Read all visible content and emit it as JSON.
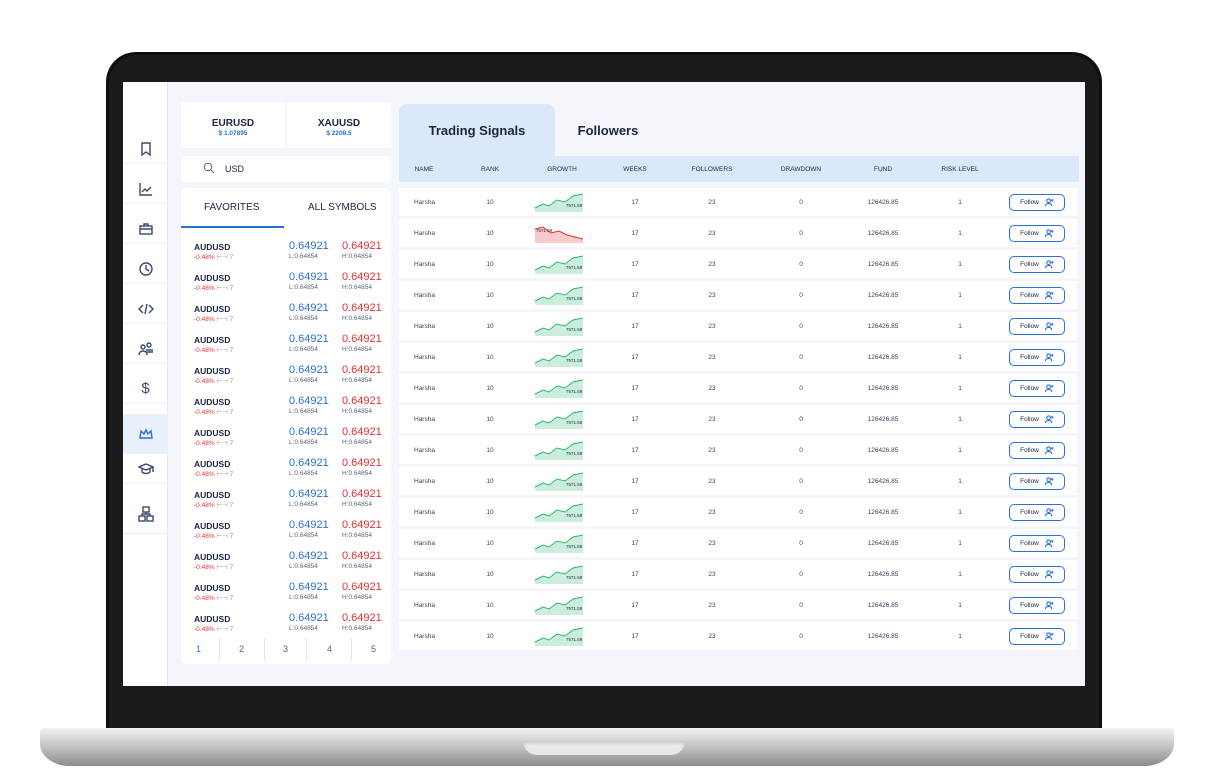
{
  "quotes": [
    {
      "symbol": "EURUSD",
      "value": "$ 1.07895"
    },
    {
      "symbol": "XAUUSD",
      "value": "$ 2208.5"
    }
  ],
  "search": {
    "value": "USD"
  },
  "symbol_tabs": [
    "FAVORITES",
    "ALL SYMBOLS"
  ],
  "symbols": [
    {
      "name": "AUDUSD",
      "change": "-0.48%",
      "spread": "7",
      "bid": "0.64921",
      "ask": "0.64921",
      "low": "L:0.64854",
      "high": "H:0.64854"
    },
    {
      "name": "AUDUSD",
      "change": "-0.48%",
      "spread": "7",
      "bid": "0.64921",
      "ask": "0.64921",
      "low": "L:0.64854",
      "high": "H:0.64854"
    },
    {
      "name": "AUDUSD",
      "change": "-0.48%",
      "spread": "7",
      "bid": "0.64921",
      "ask": "0.64921",
      "low": "L:0.64854",
      "high": "H:0.64854"
    },
    {
      "name": "AUDUSD",
      "change": "-0.48%",
      "spread": "7",
      "bid": "0.64921",
      "ask": "0.64921",
      "low": "L:0.64854",
      "high": "H:0.64854"
    },
    {
      "name": "AUDUSD",
      "change": "-0.48%",
      "spread": "7",
      "bid": "0.64921",
      "ask": "0.64921",
      "low": "L:0.64854",
      "high": "H:0.64854"
    },
    {
      "name": "AUDUSD",
      "change": "-0.48%",
      "spread": "7",
      "bid": "0.64921",
      "ask": "0.64921",
      "low": "L:0.64854",
      "high": "H:0.64854"
    },
    {
      "name": "AUDUSD",
      "change": "-0.48%",
      "spread": "7",
      "bid": "0.64921",
      "ask": "0.64921",
      "low": "L:0.64854",
      "high": "H:0.64854"
    },
    {
      "name": "AUDUSD",
      "change": "-0.48%",
      "spread": "7",
      "bid": "0.64921",
      "ask": "0.64921",
      "low": "L:0.64854",
      "high": "H:0.64854"
    },
    {
      "name": "AUDUSD",
      "change": "-0.48%",
      "spread": "7",
      "bid": "0.64921",
      "ask": "0.64921",
      "low": "L:0.64854",
      "high": "H:0.64854"
    },
    {
      "name": "AUDUSD",
      "change": "-0.48%",
      "spread": "7",
      "bid": "0.64921",
      "ask": "0.64921",
      "low": "L:0.64854",
      "high": "H:0.64854"
    },
    {
      "name": "AUDUSD",
      "change": "-0.48%",
      "spread": "7",
      "bid": "0.64921",
      "ask": "0.64921",
      "low": "L:0.64854",
      "high": "H:0.64854"
    },
    {
      "name": "AUDUSD",
      "change": "-0.48%",
      "spread": "7",
      "bid": "0.64921",
      "ask": "0.64921",
      "low": "L:0.64854",
      "high": "H:0.64854"
    },
    {
      "name": "AUDUSD",
      "change": "-0.48%",
      "spread": "7",
      "bid": "0.64921",
      "ask": "0.64921",
      "low": "L:0.64854",
      "high": "H:0.64854"
    },
    {
      "name": "AUDUSD",
      "change": "-0.48%",
      "spread": "7",
      "bid": "0.64921",
      "ask": "0.64921",
      "low": "L:0.64854",
      "high": "H:0.64854"
    }
  ],
  "pagination": [
    "1",
    "2",
    "3",
    "4",
    "5"
  ],
  "signal_tabs": [
    "Trading Signals",
    "Followers"
  ],
  "table": {
    "columns": [
      "NAME",
      "RANK",
      "GROWTH",
      "WEEKS",
      "FOLLOWERS",
      "DRAWDOWN",
      "FUND",
      "RISK LEVEL"
    ],
    "follow_label": "Follow",
    "rows": [
      {
        "name": "Harsha",
        "rank": "10",
        "growth": "7571.59",
        "trend": "up",
        "weeks": "17",
        "followers": "23",
        "drawdown": "0",
        "fund": "126426.85",
        "risk": "1"
      },
      {
        "name": "Harsha",
        "rank": "10",
        "growth": "7571.59",
        "trend": "down",
        "weeks": "17",
        "followers": "23",
        "drawdown": "0",
        "fund": "126426.85",
        "risk": "1"
      },
      {
        "name": "Harsha",
        "rank": "10",
        "growth": "7571.59",
        "trend": "up",
        "weeks": "17",
        "followers": "23",
        "drawdown": "0",
        "fund": "126426.85",
        "risk": "1"
      },
      {
        "name": "Harsha",
        "rank": "10",
        "growth": "7571.59",
        "trend": "up",
        "weeks": "17",
        "followers": "23",
        "drawdown": "0",
        "fund": "126426.85",
        "risk": "1"
      },
      {
        "name": "Harsha",
        "rank": "10",
        "growth": "7571.59",
        "trend": "up",
        "weeks": "17",
        "followers": "23",
        "drawdown": "0",
        "fund": "126426.85",
        "risk": "1"
      },
      {
        "name": "Harsha",
        "rank": "10",
        "growth": "7571.59",
        "trend": "up",
        "weeks": "17",
        "followers": "23",
        "drawdown": "0",
        "fund": "126426.85",
        "risk": "1"
      },
      {
        "name": "Harsha",
        "rank": "10",
        "growth": "7571.59",
        "trend": "up",
        "weeks": "17",
        "followers": "23",
        "drawdown": "0",
        "fund": "126426.85",
        "risk": "1"
      },
      {
        "name": "Harsha",
        "rank": "10",
        "growth": "7571.59",
        "trend": "up",
        "weeks": "17",
        "followers": "23",
        "drawdown": "0",
        "fund": "126426.85",
        "risk": "1"
      },
      {
        "name": "Harsha",
        "rank": "10",
        "growth": "7571.59",
        "trend": "up",
        "weeks": "17",
        "followers": "23",
        "drawdown": "0",
        "fund": "126426.85",
        "risk": "1"
      },
      {
        "name": "Harsha",
        "rank": "10",
        "growth": "7571.59",
        "trend": "up",
        "weeks": "17",
        "followers": "23",
        "drawdown": "0",
        "fund": "126426.85",
        "risk": "1"
      },
      {
        "name": "Harsha",
        "rank": "10",
        "growth": "7571.59",
        "trend": "up",
        "weeks": "17",
        "followers": "23",
        "drawdown": "0",
        "fund": "126426.85",
        "risk": "1"
      },
      {
        "name": "Harsha",
        "rank": "10",
        "growth": "7571.59",
        "trend": "up",
        "weeks": "17",
        "followers": "23",
        "drawdown": "0",
        "fund": "126426.85",
        "risk": "1"
      },
      {
        "name": "Harsha",
        "rank": "10",
        "growth": "7571.59",
        "trend": "up",
        "weeks": "17",
        "followers": "23",
        "drawdown": "0",
        "fund": "126426.85",
        "risk": "1"
      },
      {
        "name": "Harsha",
        "rank": "10",
        "growth": "7571.59",
        "trend": "up",
        "weeks": "17",
        "followers": "23",
        "drawdown": "0",
        "fund": "126426.85",
        "risk": "1"
      },
      {
        "name": "Harsha",
        "rank": "10",
        "growth": "7571.59",
        "trend": "up",
        "weeks": "17",
        "followers": "23",
        "drawdown": "0",
        "fund": "126426.85",
        "risk": "1"
      }
    ]
  },
  "sidebar_icons": [
    "bookmark-icon",
    "chart-icon",
    "briefcase-icon",
    "history-icon",
    "code-icon",
    "users-icon",
    "dollar-icon",
    "crown-icon",
    "graduation-cap-icon",
    "org-chart-icon"
  ],
  "colors": {
    "accent": "#2c6fd6",
    "negative": "#e03131",
    "positive": "#2bb673",
    "header_bg": "#dbe8fa"
  }
}
